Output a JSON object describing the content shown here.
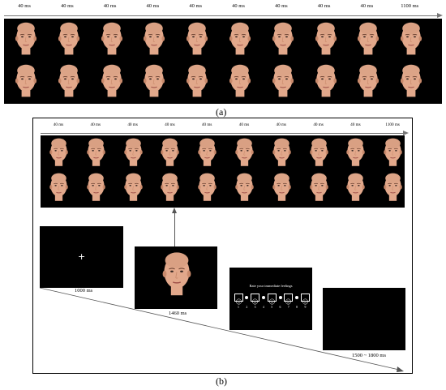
{
  "panel_a": {
    "label": "(a)",
    "timings": [
      "40 ms",
      "40 ms",
      "40 ms",
      "40 ms",
      "40 ms",
      "40 ms",
      "40 ms",
      "40 ms",
      "40 ms",
      "1100 ms"
    ]
  },
  "panel_b": {
    "label": "(b)",
    "timings": [
      "40 ms",
      "40 ms",
      "40 ms",
      "40 ms",
      "40 ms",
      "40 ms",
      "40 ms",
      "40 ms",
      "40 ms",
      "1100 ms"
    ],
    "fixation": {
      "symbol": "+",
      "duration": "1000 ms"
    },
    "face_screen": {
      "duration": "1460 ms"
    },
    "rating_screen": {
      "prompt": "Rate your immediate feelings",
      "scale_numbers": [
        "1",
        "2",
        "3",
        "4",
        "5",
        "6",
        "7",
        "8",
        "9"
      ]
    },
    "blank_screen": {
      "duration": "1500 ~ 1800 ms"
    }
  },
  "colors": {
    "background": "#ffffff",
    "screen": "#000000",
    "skin": "#e2a88b",
    "line": "#777777"
  }
}
